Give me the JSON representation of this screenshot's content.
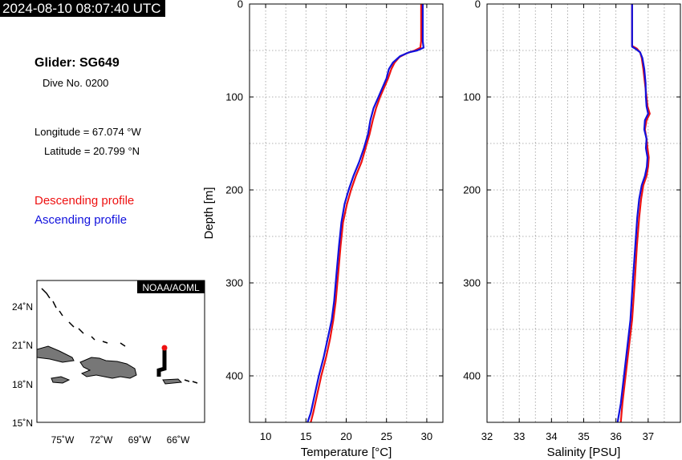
{
  "header": {
    "timestamp": "2024-08-10 08:07:40 UTC"
  },
  "info": {
    "glider": "Glider: SG649",
    "dive": "Dive No. 0200",
    "longitude": "Longitude = 67.074 °W",
    "latitude": "Latitude = 20.799 °N"
  },
  "legend": {
    "descending": "Descending profile",
    "ascending": "Ascending profile"
  },
  "colors": {
    "descending": "#ee1111",
    "ascending": "#1111dd"
  },
  "map": {
    "label": "NOAA/AOML",
    "lat_ticks": [
      "24˚N",
      "21˚N",
      "18˚N",
      "15˚N"
    ],
    "lon_ticks": [
      "75˚W",
      "72˚W",
      "69˚W",
      "66˚W"
    ]
  },
  "chart_data": [
    {
      "type": "line",
      "xlabel": "Temperature [°C]",
      "ylabel": "Depth [m]",
      "xlim": [
        8,
        32
      ],
      "ylim": [
        450,
        0
      ],
      "x_ticks": [
        "10",
        "15",
        "20",
        "25",
        "30"
      ],
      "y_ticks": [
        "0",
        "100",
        "200",
        "300",
        "400"
      ],
      "grid": true,
      "series": [
        {
          "id": "descending",
          "points": [
            [
              29.3,
              0
            ],
            [
              29.3,
              20
            ],
            [
              29.3,
              40
            ],
            [
              29.2,
              47
            ],
            [
              28.5,
              50
            ],
            [
              27.5,
              53
            ],
            [
              26.6,
              57
            ],
            [
              26.0,
              63
            ],
            [
              25.6,
              70
            ],
            [
              25.2,
              80
            ],
            [
              24.7,
              90
            ],
            [
              24.2,
              100
            ],
            [
              23.7,
              112
            ],
            [
              23.3,
              125
            ],
            [
              22.9,
              140
            ],
            [
              22.4,
              155
            ],
            [
              21.9,
              170
            ],
            [
              21.2,
              185
            ],
            [
              20.6,
              200
            ],
            [
              20.1,
              215
            ],
            [
              19.6,
              235
            ],
            [
              19.3,
              260
            ],
            [
              19.0,
              290
            ],
            [
              18.7,
              320
            ],
            [
              18.4,
              340
            ],
            [
              18.0,
              360
            ],
            [
              17.5,
              380
            ],
            [
              16.9,
              400
            ],
            [
              16.4,
              420
            ],
            [
              15.9,
              440
            ],
            [
              15.6,
              450
            ]
          ]
        },
        {
          "id": "ascending",
          "points": [
            [
              29.5,
              0
            ],
            [
              29.5,
              20
            ],
            [
              29.5,
              40
            ],
            [
              29.6,
              47
            ],
            [
              28.8,
              50
            ],
            [
              27.8,
              52
            ],
            [
              26.7,
              56
            ],
            [
              25.8,
              63
            ],
            [
              25.3,
              70
            ],
            [
              25.0,
              80
            ],
            [
              24.5,
              90
            ],
            [
              24.0,
              100
            ],
            [
              23.4,
              112
            ],
            [
              23.0,
              125
            ],
            [
              22.7,
              140
            ],
            [
              22.2,
              155
            ],
            [
              21.6,
              170
            ],
            [
              20.9,
              185
            ],
            [
              20.3,
              200
            ],
            [
              19.8,
              215
            ],
            [
              19.4,
              235
            ],
            [
              19.1,
              260
            ],
            [
              18.8,
              290
            ],
            [
              18.5,
              320
            ],
            [
              18.2,
              340
            ],
            [
              17.7,
              360
            ],
            [
              17.2,
              380
            ],
            [
              16.6,
              400
            ],
            [
              16.1,
              420
            ],
            [
              15.6,
              440
            ],
            [
              15.2,
              450
            ]
          ]
        }
      ]
    },
    {
      "type": "line",
      "xlabel": "Salinity [PSU]",
      "ylabel": "",
      "xlim": [
        32,
        38
      ],
      "ylim": [
        450,
        0
      ],
      "x_ticks": [
        "32",
        "33",
        "34",
        "35",
        "36",
        "37"
      ],
      "y_ticks": [
        "0",
        "100",
        "200",
        "300",
        "400"
      ],
      "grid": true,
      "series": [
        {
          "id": "descending",
          "points": [
            [
              36.5,
              0
            ],
            [
              36.5,
              20
            ],
            [
              36.5,
              40
            ],
            [
              36.5,
              45
            ],
            [
              36.65,
              48
            ],
            [
              36.75,
              52
            ],
            [
              36.8,
              58
            ],
            [
              36.85,
              70
            ],
            [
              36.9,
              85
            ],
            [
              36.95,
              100
            ],
            [
              36.98,
              110
            ],
            [
              37.05,
              118
            ],
            [
              36.95,
              125
            ],
            [
              36.9,
              135
            ],
            [
              36.95,
              145
            ],
            [
              36.98,
              155
            ],
            [
              37.02,
              165
            ],
            [
              37.0,
              175
            ],
            [
              36.95,
              185
            ],
            [
              36.85,
              195
            ],
            [
              36.78,
              210
            ],
            [
              36.72,
              230
            ],
            [
              36.65,
              260
            ],
            [
              36.58,
              300
            ],
            [
              36.5,
              340
            ],
            [
              36.4,
              370
            ],
            [
              36.3,
              400
            ],
            [
              36.2,
              430
            ],
            [
              36.15,
              450
            ]
          ]
        },
        {
          "id": "ascending",
          "points": [
            [
              36.5,
              0
            ],
            [
              36.5,
              20
            ],
            [
              36.5,
              40
            ],
            [
              36.5,
              46
            ],
            [
              36.6,
              48
            ],
            [
              36.75,
              52
            ],
            [
              36.82,
              58
            ],
            [
              36.88,
              70
            ],
            [
              36.92,
              85
            ],
            [
              36.93,
              100
            ],
            [
              36.95,
              110
            ],
            [
              37.0,
              118
            ],
            [
              36.9,
              125
            ],
            [
              36.88,
              135
            ],
            [
              36.95,
              145
            ],
            [
              36.93,
              155
            ],
            [
              36.98,
              165
            ],
            [
              36.96,
              175
            ],
            [
              36.9,
              185
            ],
            [
              36.8,
              195
            ],
            [
              36.72,
              210
            ],
            [
              36.66,
              230
            ],
            [
              36.6,
              260
            ],
            [
              36.52,
              300
            ],
            [
              36.45,
              340
            ],
            [
              36.35,
              370
            ],
            [
              36.25,
              400
            ],
            [
              36.15,
              430
            ],
            [
              36.05,
              450
            ]
          ]
        }
      ]
    }
  ]
}
